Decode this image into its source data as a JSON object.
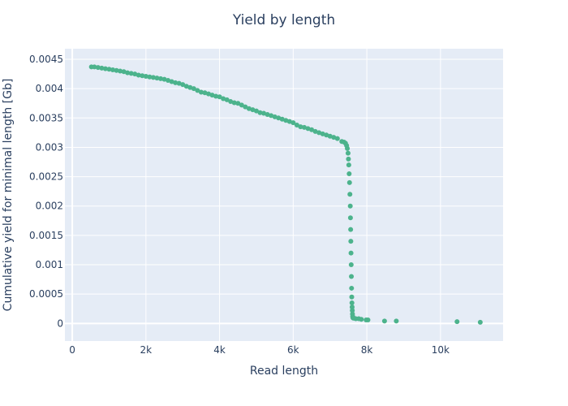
{
  "chart_data": {
    "type": "scatter",
    "title": "Yield by length",
    "xlabel": "Read length",
    "ylabel": "Cumulative yield for minimal length [Gb]",
    "xlim": [
      -200,
      11700
    ],
    "ylim": [
      -0.0003,
      0.00468
    ],
    "x_ticks": [
      0,
      2000,
      4000,
      6000,
      8000,
      10000
    ],
    "x_tick_labels": [
      "0",
      "2k",
      "4k",
      "6k",
      "8k",
      "10k"
    ],
    "y_ticks": [
      0,
      0.0005,
      0.001,
      0.0015,
      0.002,
      0.0025,
      0.003,
      0.0035,
      0.004,
      0.0045
    ],
    "y_tick_labels": [
      "0",
      "0.0005",
      "0.001",
      "0.0015",
      "0.002",
      "0.0025",
      "0.003",
      "0.0035",
      "0.004",
      "0.0045"
    ],
    "grid": true,
    "colors": {
      "plot_bg": "#e5ecf6",
      "grid": "#ffffff",
      "marker": "#4cb38c",
      "text": "#2a3f5f"
    },
    "series": [
      {
        "x": [
          520,
          600,
          700,
          800,
          900,
          1000,
          1100,
          1200,
          1300,
          1400,
          1500,
          1600,
          1700,
          1800,
          1900,
          2000,
          2100,
          2200,
          2300,
          2400,
          2500,
          2600,
          2700,
          2800,
          2900,
          3000,
          3100,
          3200,
          3300,
          3400,
          3500,
          3600,
          3700,
          3800,
          3900,
          4000,
          4100,
          4200,
          4300,
          4400,
          4500,
          4600,
          4700,
          4800,
          4900,
          5000,
          5100,
          5200,
          5300,
          5400,
          5500,
          5600,
          5700,
          5800,
          5900,
          6000,
          6100,
          6200,
          6300,
          6400,
          6500,
          6600,
          6700,
          6800,
          6900,
          7000,
          7100,
          7200,
          7320,
          7380,
          7420,
          7450,
          7470,
          7490,
          7500,
          7510,
          7520,
          7530,
          7540,
          7550,
          7555,
          7560,
          7565,
          7570,
          7575,
          7580,
          7585,
          7590,
          7595,
          7600,
          7605,
          7610,
          7615,
          7620,
          7630,
          7650,
          7700,
          7780,
          7850,
          7980,
          8030,
          8480,
          8800,
          10450,
          11080
        ],
        "y": [
          0.00437,
          0.00437,
          0.00436,
          0.00435,
          0.00434,
          0.00433,
          0.00432,
          0.00431,
          0.0043,
          0.00429,
          0.00427,
          0.00426,
          0.00425,
          0.00423,
          0.00422,
          0.00421,
          0.0042,
          0.00419,
          0.00418,
          0.00417,
          0.00416,
          0.00414,
          0.00412,
          0.0041,
          0.00409,
          0.00407,
          0.00404,
          0.00402,
          0.004,
          0.00397,
          0.00394,
          0.00393,
          0.00391,
          0.00389,
          0.00387,
          0.00386,
          0.00383,
          0.00381,
          0.00378,
          0.00376,
          0.00375,
          0.00372,
          0.00369,
          0.00366,
          0.00364,
          0.00362,
          0.00359,
          0.00358,
          0.00356,
          0.00354,
          0.00352,
          0.0035,
          0.00348,
          0.00346,
          0.00344,
          0.00342,
          0.00338,
          0.00335,
          0.00334,
          0.00332,
          0.0033,
          0.00327,
          0.00325,
          0.00323,
          0.00321,
          0.00319,
          0.00317,
          0.00315,
          0.0031,
          0.00309,
          0.00307,
          0.00303,
          0.00298,
          0.0029,
          0.0028,
          0.0027,
          0.00255,
          0.0024,
          0.0022,
          0.002,
          0.0018,
          0.0016,
          0.0014,
          0.0012,
          0.001,
          0.0008,
          0.0006,
          0.00045,
          0.00035,
          0.00028,
          0.00022,
          0.00016,
          0.00012,
          0.0001,
          9e-05,
          9e-05,
          8e-05,
          8e-05,
          7e-05,
          6e-05,
          6e-05,
          4e-05,
          4e-05,
          3e-05,
          2e-05
        ]
      }
    ]
  }
}
